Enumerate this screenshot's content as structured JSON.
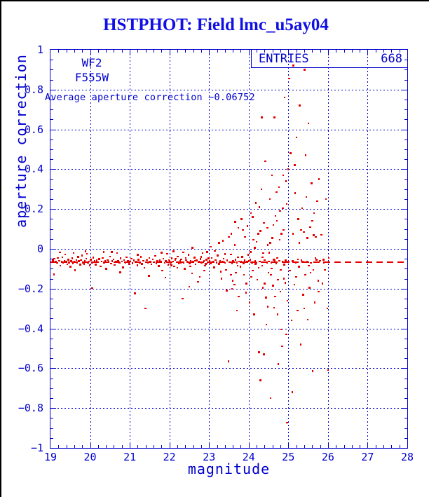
{
  "title": "HSTPHOT: Field lmc_u5ay04",
  "colors": {
    "frame": "#000000",
    "plot_blue": "#0000cd",
    "title_blue": "#0f0fe6",
    "point_red": "#e50000",
    "background": "#ffffff"
  },
  "annotations": {
    "camera": "WF2",
    "filter": "F555W",
    "average_text": "Average aperture correction −0.06752",
    "entries_label": "ENTRIES",
    "entries_value": "668"
  },
  "chart_data": {
    "type": "scatter",
    "title": "HSTPHOT: Field lmc_u5ay04",
    "xlabel": "magnitude",
    "ylabel": "aperture correction",
    "xlim": [
      19,
      28
    ],
    "ylim": [
      -1,
      1
    ],
    "xticks": [
      19,
      20,
      21,
      22,
      23,
      24,
      25,
      26,
      27,
      28
    ],
    "yticks": [
      {
        "v": 1,
        "label": "1"
      },
      {
        "v": 0.8,
        "label": "0.8"
      },
      {
        "v": 0.6,
        "label": "0.6"
      },
      {
        "v": 0.4,
        "label": "0.4"
      },
      {
        "v": 0.2,
        "label": "0.2"
      },
      {
        "v": 0,
        "label": "0"
      },
      {
        "v": -0.2,
        "label": "−0.2"
      },
      {
        "v": -0.4,
        "label": "−0.4"
      },
      {
        "v": -0.6,
        "label": "−0.6"
      },
      {
        "v": -0.8,
        "label": "−0.8"
      },
      {
        "v": -1,
        "label": "−1"
      }
    ],
    "x_minor_step": 0.2,
    "y_minor_step": 0.05,
    "grid": true,
    "legend_position": "none",
    "entries": 668,
    "average_aperture_correction": -0.06752,
    "points": [
      [
        19.06,
        -0.058
      ],
      [
        19.09,
        -0.129
      ],
      [
        19.1,
        -0.05
      ],
      [
        19.13,
        -0.066
      ],
      [
        19.17,
        -0.071
      ],
      [
        19.19,
        -0.045
      ],
      [
        19.22,
        -0.06
      ],
      [
        19.24,
        -0.018
      ],
      [
        19.25,
        -0.085
      ],
      [
        19.28,
        -0.066
      ],
      [
        19.3,
        -0.042
      ],
      [
        19.32,
        -0.071
      ],
      [
        19.35,
        -0.059
      ],
      [
        19.37,
        -0.028
      ],
      [
        19.4,
        -0.064
      ],
      [
        19.42,
        -0.077
      ],
      [
        19.45,
        -0.055
      ],
      [
        19.47,
        -0.068
      ],
      [
        19.5,
        -0.09
      ],
      [
        19.52,
        -0.061
      ],
      [
        19.55,
        -0.047
      ],
      [
        19.57,
        -0.073
      ],
      [
        19.58,
        -0.021
      ],
      [
        19.6,
        -0.064
      ],
      [
        19.62,
        -0.108
      ],
      [
        19.65,
        -0.057
      ],
      [
        19.67,
        -0.069
      ],
      [
        19.7,
        -0.041
      ],
      [
        19.72,
        -0.062
      ],
      [
        19.75,
        -0.08
      ],
      [
        19.77,
        -0.056
      ],
      [
        19.8,
        -0.033
      ],
      [
        19.82,
        -0.068
      ],
      [
        19.85,
        -0.075
      ],
      [
        19.87,
        -0.061
      ],
      [
        19.88,
        -0.013
      ],
      [
        19.9,
        -0.049
      ],
      [
        19.92,
        -0.024
      ],
      [
        19.95,
        -0.07
      ],
      [
        19.97,
        -0.063
      ],
      [
        19.99,
        -0.083
      ],
      [
        20.02,
        -0.055
      ],
      [
        20.05,
        -0.069
      ],
      [
        20.05,
        -0.198
      ],
      [
        20.08,
        -0.044
      ],
      [
        20.11,
        -0.062
      ],
      [
        20.14,
        -0.079
      ],
      [
        20.17,
        -0.058
      ],
      [
        20.2,
        -0.067
      ],
      [
        20.23,
        -0.051
      ],
      [
        20.26,
        -0.088
      ],
      [
        20.29,
        -0.063
      ],
      [
        20.32,
        -0.046
      ],
      [
        20.34,
        -0.015
      ],
      [
        20.35,
        -0.071
      ],
      [
        20.38,
        -0.06
      ],
      [
        20.41,
        -0.1
      ],
      [
        20.44,
        -0.056
      ],
      [
        20.47,
        -0.066
      ],
      [
        20.5,
        -0.038
      ],
      [
        20.53,
        -0.074
      ],
      [
        20.55,
        -0.016
      ],
      [
        20.56,
        -0.062
      ],
      [
        20.59,
        -0.052
      ],
      [
        20.62,
        -0.081
      ],
      [
        20.65,
        -0.065
      ],
      [
        20.68,
        -0.022
      ],
      [
        20.71,
        -0.059
      ],
      [
        20.74,
        -0.07
      ],
      [
        20.76,
        -0.118
      ],
      [
        20.77,
        -0.048
      ],
      [
        20.8,
        -0.064
      ],
      [
        20.83,
        -0.093
      ],
      [
        20.86,
        -0.057
      ],
      [
        20.89,
        -0.068
      ],
      [
        20.92,
        -0.043
      ],
      [
        20.95,
        -0.061
      ],
      [
        20.98,
        -0.076
      ],
      [
        21.01,
        -0.063
      ],
      [
        21.04,
        -0.05
      ],
      [
        21.07,
        -0.072
      ],
      [
        21.1,
        -0.058
      ],
      [
        21.13,
        -0.224
      ],
      [
        21.16,
        -0.066
      ],
      [
        21.19,
        -0.082
      ],
      [
        21.2,
        -0.03
      ],
      [
        21.22,
        -0.054
      ],
      [
        21.25,
        -0.068
      ],
      [
        21.28,
        -0.041
      ],
      [
        21.31,
        -0.075
      ],
      [
        21.34,
        -0.06
      ],
      [
        21.37,
        -0.095
      ],
      [
        21.4,
        -0.3
      ],
      [
        21.43,
        -0.057
      ],
      [
        21.46,
        -0.069
      ],
      [
        21.48,
        -0.135
      ],
      [
        21.49,
        -0.046
      ],
      [
        21.52,
        -0.064
      ],
      [
        21.55,
        -0.078
      ],
      [
        21.58,
        -0.053
      ],
      [
        21.61,
        -0.067
      ],
      [
        21.64,
        -0.035
      ],
      [
        21.67,
        -0.073
      ],
      [
        21.7,
        -0.061
      ],
      [
        21.73,
        -0.086
      ],
      [
        21.76,
        -0.058
      ],
      [
        21.79,
        -0.065
      ],
      [
        21.8,
        -0.019
      ],
      [
        21.82,
        -0.11
      ],
      [
        21.85,
        -0.049
      ],
      [
        21.88,
        -0.07
      ],
      [
        21.9,
        -0.145
      ],
      [
        21.91,
        -0.062
      ],
      [
        21.94,
        -0.025
      ],
      [
        21.97,
        -0.08
      ],
      [
        21.99,
        -0.056
      ],
      [
        22.01,
        -0.059
      ],
      [
        22.03,
        -0.071
      ],
      [
        22.05,
        -0.082
      ],
      [
        22.06,
        -0.048
      ],
      [
        22.09,
        -0.064
      ],
      [
        22.1,
        -0.012
      ],
      [
        22.12,
        -0.088
      ],
      [
        22.15,
        -0.056
      ],
      [
        22.16,
        -0.05
      ],
      [
        22.18,
        -0.067
      ],
      [
        22.2,
        -0.095
      ],
      [
        22.21,
        -0.039
      ],
      [
        22.24,
        -0.074
      ],
      [
        22.27,
        -0.061
      ],
      [
        22.28,
        -0.07
      ],
      [
        22.3,
        -0.052
      ],
      [
        22.33,
        -0.25
      ],
      [
        22.35,
        -0.018
      ],
      [
        22.36,
        -0.068
      ],
      [
        22.39,
        -0.1
      ],
      [
        22.41,
        -0.046
      ],
      [
        22.42,
        -0.057
      ],
      [
        22.45,
        -0.065
      ],
      [
        22.48,
        -0.03
      ],
      [
        22.5,
        -0.19
      ],
      [
        22.51,
        -0.072
      ],
      [
        22.53,
        -0.088
      ],
      [
        22.54,
        -0.06
      ],
      [
        22.57,
        -0.123
      ],
      [
        22.58,
        0.005
      ],
      [
        22.6,
        -0.066
      ],
      [
        22.63,
        -0.044
      ],
      [
        22.64,
        -0.059
      ],
      [
        22.66,
        -0.078
      ],
      [
        22.69,
        -0.058
      ],
      [
        22.72,
        -0.165
      ],
      [
        22.75,
        -0.063
      ],
      [
        22.77,
        -0.14
      ],
      [
        22.78,
        -0.051
      ],
      [
        22.8,
        -0.041
      ],
      [
        22.81,
        -0.07
      ],
      [
        22.84,
        -0.022
      ],
      [
        22.87,
        -0.062
      ],
      [
        22.88,
        -0.11
      ],
      [
        22.9,
        -0.085
      ],
      [
        22.92,
        -0.075
      ],
      [
        22.93,
        -0.055
      ],
      [
        22.95,
        -0.015
      ],
      [
        22.96,
        -0.069
      ],
      [
        22.99,
        -0.047
      ],
      [
        23.01,
        -0.06
      ],
      [
        23.04,
        -0.073
      ],
      [
        23.05,
        0.01
      ],
      [
        23.07,
        -0.045
      ],
      [
        23.1,
        -0.066
      ],
      [
        23.13,
        -0.094
      ],
      [
        23.15,
        -0.01
      ],
      [
        23.16,
        -0.057
      ],
      [
        23.19,
        -0.068
      ],
      [
        23.22,
        -0.034
      ],
      [
        23.25,
        0.03
      ],
      [
        23.25,
        -0.076
      ],
      [
        23.28,
        -0.059
      ],
      [
        23.3,
        -0.115
      ],
      [
        23.31,
        -0.15
      ],
      [
        23.34,
        -0.064
      ],
      [
        23.35,
        0.04
      ],
      [
        23.37,
        -0.049
      ],
      [
        23.4,
        -0.026
      ],
      [
        23.4,
        -0.07
      ],
      [
        23.43,
        -0.105
      ],
      [
        23.45,
        -0.21
      ],
      [
        23.46,
        -0.058
      ],
      [
        23.49,
        -0.565
      ],
      [
        23.5,
        0.06
      ],
      [
        23.52,
        -0.067
      ],
      [
        23.55,
        -0.028
      ],
      [
        23.55,
        -0.13
      ],
      [
        23.56,
        0.075
      ],
      [
        23.58,
        -0.074
      ],
      [
        23.58,
        -0.2
      ],
      [
        23.6,
        -0.16
      ],
      [
        23.61,
        -0.062
      ],
      [
        23.64,
        -0.18
      ],
      [
        23.65,
        0.02
      ],
      [
        23.66,
        0.135
      ],
      [
        23.67,
        -0.055
      ],
      [
        23.68,
        -0.12
      ],
      [
        23.7,
        -0.069
      ],
      [
        23.7,
        -0.31
      ],
      [
        23.72,
        -0.085
      ],
      [
        23.73,
        -0.042
      ],
      [
        23.74,
        0.105
      ],
      [
        23.75,
        -0.24
      ],
      [
        23.76,
        -0.063
      ],
      [
        23.79,
        -0.09
      ],
      [
        23.81,
        -0.065
      ],
      [
        23.82,
        0.15
      ],
      [
        23.84,
        -0.04
      ],
      [
        23.85,
        0.095
      ],
      [
        23.87,
        -0.072
      ],
      [
        23.88,
        -0.13
      ],
      [
        23.9,
        -0.058
      ],
      [
        23.91,
        0.06
      ],
      [
        23.93,
        -0.22
      ],
      [
        23.94,
        -0.175
      ],
      [
        23.96,
        -0.066
      ],
      [
        23.97,
        0.115
      ],
      [
        23.99,
        -0.03
      ],
      [
        24.0,
        -0.062
      ],
      [
        24.02,
        -0.27
      ],
      [
        24.04,
        -0.055
      ],
      [
        24.05,
        -0.015
      ],
      [
        24.06,
        0.18
      ],
      [
        24.07,
        -0.14
      ],
      [
        24.08,
        -0.068
      ],
      [
        24.1,
        -0.11
      ],
      [
        24.1,
        0.16
      ],
      [
        24.12,
        0.045
      ],
      [
        24.14,
        -0.33
      ],
      [
        24.15,
        0.005
      ],
      [
        24.16,
        -0.059
      ],
      [
        24.17,
        -0.075
      ],
      [
        24.18,
        0.23
      ],
      [
        24.2,
        -0.07
      ],
      [
        24.2,
        0.035
      ],
      [
        24.22,
        -0.155
      ],
      [
        24.24,
        0.075
      ],
      [
        24.25,
        -0.095
      ],
      [
        24.26,
        -0.52
      ],
      [
        24.27,
        0.21
      ],
      [
        24.28,
        -0.063
      ],
      [
        24.3,
        -0.66
      ],
      [
        24.3,
        0.09
      ],
      [
        24.32,
        0.3
      ],
      [
        24.33,
        0.66
      ],
      [
        24.34,
        -0.085
      ],
      [
        24.35,
        -0.042
      ],
      [
        24.36,
        -0.195
      ],
      [
        24.37,
        -0.022
      ],
      [
        24.38,
        0.13
      ],
      [
        24.38,
        -0.53
      ],
      [
        24.4,
        -0.057
      ],
      [
        24.4,
        -0.175
      ],
      [
        24.42,
        0.44
      ],
      [
        24.44,
        -0.245
      ],
      [
        24.45,
        -0.38
      ],
      [
        24.46,
        -0.068
      ],
      [
        24.47,
        0.105
      ],
      [
        24.48,
        0.02
      ],
      [
        24.48,
        -0.29
      ],
      [
        24.5,
        -0.12
      ],
      [
        24.51,
        -0.063
      ],
      [
        24.52,
        -0.02
      ],
      [
        24.53,
        0.25
      ],
      [
        24.54,
        0.03
      ],
      [
        24.55,
        -0.75
      ],
      [
        24.56,
        -0.13
      ],
      [
        24.57,
        -0.068
      ],
      [
        24.58,
        -0.098
      ],
      [
        24.59,
        0.37
      ],
      [
        24.6,
        0.055
      ],
      [
        24.61,
        -0.185
      ],
      [
        24.62,
        0.12
      ],
      [
        24.63,
        -0.055
      ],
      [
        24.64,
        -0.295
      ],
      [
        24.65,
        0.66
      ],
      [
        24.66,
        -0.058
      ],
      [
        24.67,
        -0.24
      ],
      [
        24.68,
        0.165
      ],
      [
        24.69,
        -0.072
      ],
      [
        24.7,
        0.285
      ],
      [
        24.71,
        0.14
      ],
      [
        24.72,
        -0.045
      ],
      [
        24.73,
        -0.33
      ],
      [
        24.74,
        -0.155
      ],
      [
        24.75,
        -0.58
      ],
      [
        24.76,
        0.31
      ],
      [
        24.77,
        -0.06
      ],
      [
        24.78,
        0.045
      ],
      [
        24.79,
        0.19
      ],
      [
        24.8,
        -0.215
      ],
      [
        24.81,
        -0.105
      ],
      [
        24.82,
        -0.405
      ],
      [
        24.83,
        0.076
      ],
      [
        24.84,
        -0.49
      ],
      [
        24.85,
        -0.066
      ],
      [
        24.86,
        0.205
      ],
      [
        24.87,
        0.37
      ],
      [
        24.88,
        0.095
      ],
      [
        24.89,
        -0.15
      ],
      [
        24.9,
        -0.08
      ],
      [
        24.91,
        0.76
      ],
      [
        24.92,
        -0.17
      ],
      [
        24.93,
        -0.058
      ],
      [
        24.94,
        0.34
      ],
      [
        24.95,
        -0.43
      ],
      [
        24.96,
        0.225
      ],
      [
        24.97,
        -0.874
      ],
      [
        24.98,
        -0.26
      ],
      [
        24.99,
        0.4
      ],
      [
        25.0,
        -0.065
      ],
      [
        25.02,
        0.855
      ],
      [
        25.04,
        -0.11
      ],
      [
        25.06,
        0.48
      ],
      [
        25.08,
        -0.36
      ],
      [
        25.1,
        -0.72
      ],
      [
        25.11,
        -0.062
      ],
      [
        25.12,
        0.075
      ],
      [
        25.13,
        0.92
      ],
      [
        25.15,
        -0.18
      ],
      [
        25.16,
        0.42
      ],
      [
        25.17,
        0.28
      ],
      [
        25.19,
        -0.068
      ],
      [
        25.2,
        -0.14
      ],
      [
        25.21,
        0.56
      ],
      [
        25.23,
        -0.31
      ],
      [
        25.24,
        -0.052
      ],
      [
        25.25,
        0.15
      ],
      [
        25.27,
        -0.09
      ],
      [
        25.28,
        0.03
      ],
      [
        25.29,
        0.72
      ],
      [
        25.31,
        -0.48
      ],
      [
        25.32,
        0.095
      ],
      [
        25.33,
        -0.058
      ],
      [
        25.35,
        0.205
      ],
      [
        25.36,
        -0.066
      ],
      [
        25.37,
        -0.23
      ],
      [
        25.39,
        0.085
      ],
      [
        25.4,
        -0.3
      ],
      [
        25.41,
        0.9
      ],
      [
        25.43,
        -0.13
      ],
      [
        25.44,
        0.47
      ],
      [
        25.45,
        0.26
      ],
      [
        25.47,
        -0.064
      ],
      [
        25.48,
        0.055
      ],
      [
        25.49,
        -0.355
      ],
      [
        25.51,
        0.63
      ],
      [
        25.52,
        -0.085
      ],
      [
        25.53,
        -0.195
      ],
      [
        25.55,
        0.11
      ],
      [
        25.56,
        -0.12
      ],
      [
        25.57,
        -0.07
      ],
      [
        25.59,
        0.33
      ],
      [
        25.6,
        0.14
      ],
      [
        25.61,
        -0.615
      ],
      [
        25.63,
        -0.105
      ],
      [
        25.64,
        0.068
      ],
      [
        25.65,
        0.18
      ],
      [
        25.67,
        -0.27
      ],
      [
        25.68,
        -0.046
      ],
      [
        25.69,
        0.06
      ],
      [
        25.71,
        -0.054
      ],
      [
        25.73,
        0.24
      ],
      [
        25.75,
        -0.16
      ],
      [
        25.76,
        -0.215
      ],
      [
        25.77,
        0.35
      ],
      [
        25.8,
        -0.06
      ],
      [
        25.83,
        0.07
      ],
      [
        25.86,
        -0.175
      ],
      [
        25.89,
        -0.055
      ],
      [
        25.9,
        -0.068
      ],
      [
        25.92,
        -0.105
      ],
      [
        25.95,
        0.25
      ],
      [
        25.98,
        -0.3
      ],
      [
        26.0,
        -0.61
      ],
      [
        26.02,
        -0.045
      ]
    ]
  }
}
